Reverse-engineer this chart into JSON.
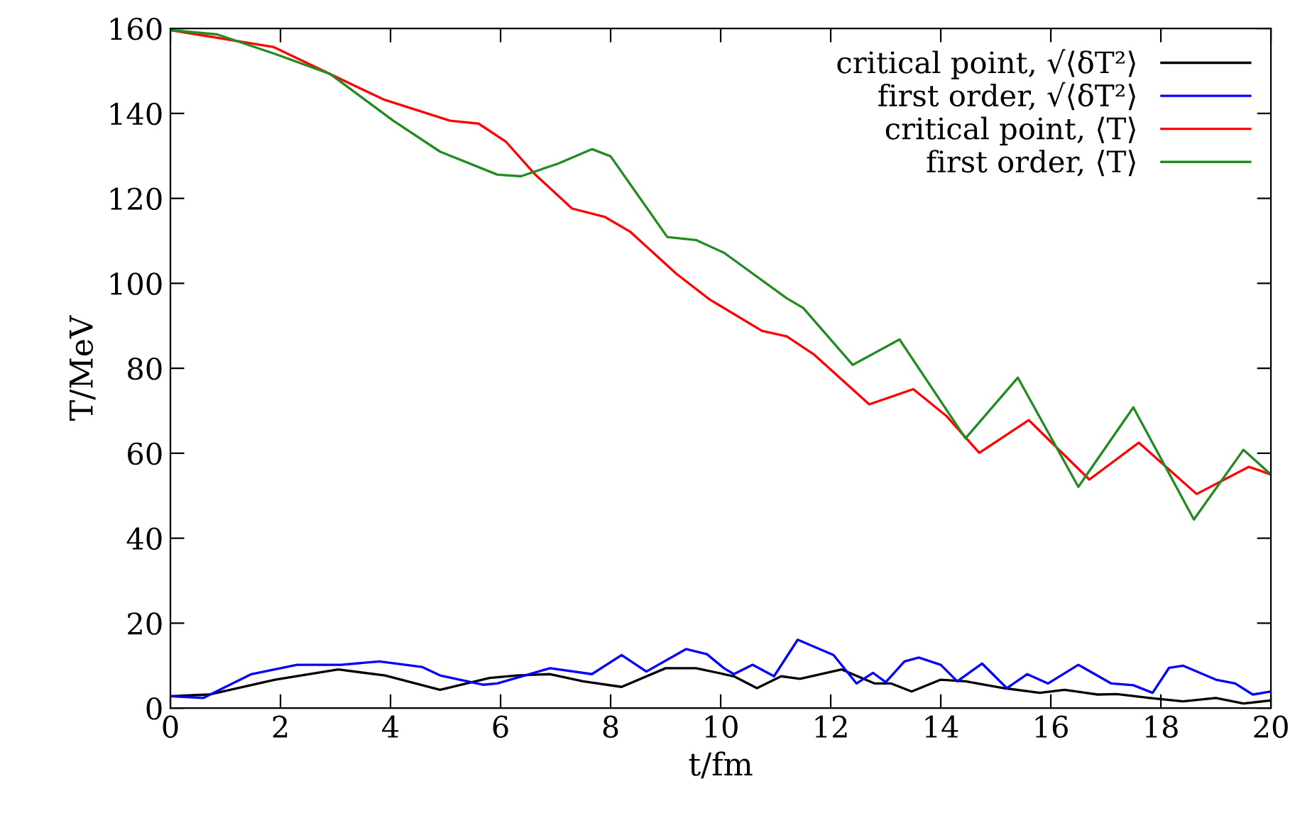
{
  "chart_data": {
    "type": "line",
    "xlabel": "t/fm",
    "ylabel": "T/MeV",
    "xlim": [
      0,
      20
    ],
    "xticks": [
      0,
      2,
      4,
      6,
      8,
      10,
      12,
      14,
      16,
      18,
      20
    ],
    "ylim": [
      0,
      160
    ],
    "yticks": [
      0,
      20,
      40,
      60,
      80,
      100,
      120,
      140,
      160
    ],
    "grid": false,
    "legend": "top right",
    "marker": "none",
    "line_style": "solid",
    "series": [
      {
        "name": "critical point, √⟨δT²⟩",
        "color": "#000000",
        "x": [
          0,
          0.7,
          1.9,
          3.05,
          3.9,
          4.9,
          5.8,
          6.3,
          6.9,
          7.5,
          8.2,
          9.0,
          9.55,
          10.06,
          10.24,
          10.66,
          11.1,
          11.44,
          12.2,
          12.8,
          13.1,
          13.47,
          14.0,
          14.45,
          15.15,
          15.8,
          16.25,
          16.85,
          17.2,
          17.8,
          18.4,
          19.0,
          19.5,
          20
        ],
        "values": [
          2.8,
          3.2,
          6.7,
          9.1,
          7.7,
          4.3,
          7.1,
          7.7,
          8.0,
          6.3,
          5.0,
          9.4,
          9.4,
          8.0,
          7.5,
          4.7,
          7.5,
          6.9,
          9.1,
          5.8,
          5.8,
          3.9,
          6.7,
          6.3,
          4.7,
          3.6,
          4.3,
          3.2,
          3.3,
          2.4,
          1.6,
          2.4,
          1.1,
          1.8
        ]
      },
      {
        "name": "first order, √⟨δT²⟩",
        "color": "#0000ff",
        "x": [
          0,
          0.6,
          1.47,
          2.3,
          3.1,
          3.8,
          4.57,
          4.9,
          5.68,
          5.94,
          6.9,
          7.66,
          8.2,
          8.65,
          9.37,
          9.75,
          10.06,
          10.24,
          10.58,
          10.97,
          11.4,
          12.05,
          12.47,
          12.77,
          13.0,
          13.34,
          13.6,
          14.0,
          14.3,
          14.75,
          15.2,
          15.57,
          15.95,
          16.5,
          17.1,
          17.5,
          17.85,
          18.15,
          18.4,
          19.0,
          19.35,
          19.67,
          20
        ],
        "values": [
          2.8,
          2.4,
          8.0,
          10.2,
          10.2,
          11.0,
          9.7,
          7.7,
          5.5,
          5.8,
          9.4,
          8.0,
          12.5,
          8.6,
          13.9,
          12.7,
          9.4,
          8.0,
          10.2,
          7.5,
          16.1,
          12.5,
          5.8,
          8.3,
          6.1,
          11.0,
          11.9,
          10.2,
          6.3,
          10.5,
          4.7,
          8.0,
          5.8,
          10.2,
          5.8,
          5.4,
          3.6,
          9.5,
          10.0,
          6.7,
          5.8,
          3.2,
          3.9
        ]
      },
      {
        "name": "critical point, ⟨T⟩",
        "color": "#ff0000",
        "x": [
          0,
          1.88,
          3.87,
          5.08,
          5.6,
          6.1,
          6.63,
          7.3,
          7.9,
          8.35,
          9.2,
          9.8,
          10.75,
          11.2,
          11.7,
          12.7,
          13.5,
          14.1,
          14.7,
          15.6,
          16.7,
          17.6,
          18.65,
          19.6,
          20
        ],
        "values": [
          159.6,
          155.6,
          143.3,
          138.3,
          137.6,
          133.3,
          125.6,
          117.6,
          115.6,
          112.2,
          102.2,
          96.2,
          88.8,
          87.5,
          83.2,
          71.5,
          75.1,
          68.8,
          60.1,
          67.8,
          53.8,
          62.5,
          50.4,
          56.8,
          55.0
        ]
      },
      {
        "name": "first order, ⟨T⟩",
        "color": "#228b22",
        "x": [
          0,
          0.85,
          1.9,
          2.9,
          4.05,
          4.9,
          5.94,
          6.37,
          7.05,
          7.66,
          8.0,
          9.03,
          9.55,
          10.06,
          11.2,
          11.5,
          12.4,
          13.25,
          14.45,
          15.4,
          16.5,
          17.5,
          18.6,
          19.5,
          20
        ],
        "values": [
          159.6,
          158.6,
          154.0,
          149.3,
          138.3,
          131.0,
          125.6,
          125.2,
          128.2,
          131.6,
          129.9,
          110.9,
          110.2,
          107.2,
          96.5,
          94.2,
          80.8,
          86.8,
          63.5,
          77.8,
          52.1,
          70.8,
          44.4,
          60.8,
          55.0
        ]
      }
    ]
  }
}
